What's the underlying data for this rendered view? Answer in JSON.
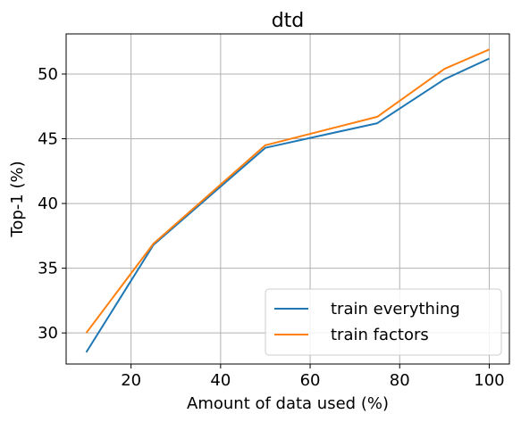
{
  "chart_data": {
    "type": "line",
    "title": "dtd",
    "xlabel": "Amount of data used (%)",
    "ylabel": "Top-1 (%)",
    "xlim": [
      5.5,
      104.5
    ],
    "ylim": [
      27.6,
      53.1
    ],
    "xticks": [
      20,
      40,
      60,
      80,
      100
    ],
    "yticks": [
      30,
      35,
      40,
      45,
      50
    ],
    "grid": true,
    "legend_position": "bottom-right",
    "x": [
      10,
      25,
      50,
      75,
      90,
      100
    ],
    "series": [
      {
        "name": "train everything",
        "color": "#1f77b4",
        "values": [
          28.5,
          36.8,
          44.3,
          46.2,
          49.6,
          51.2
        ]
      },
      {
        "name": "train factors",
        "color": "#ff7f0e",
        "values": [
          30.0,
          36.9,
          44.5,
          46.7,
          50.4,
          51.9
        ]
      }
    ]
  }
}
